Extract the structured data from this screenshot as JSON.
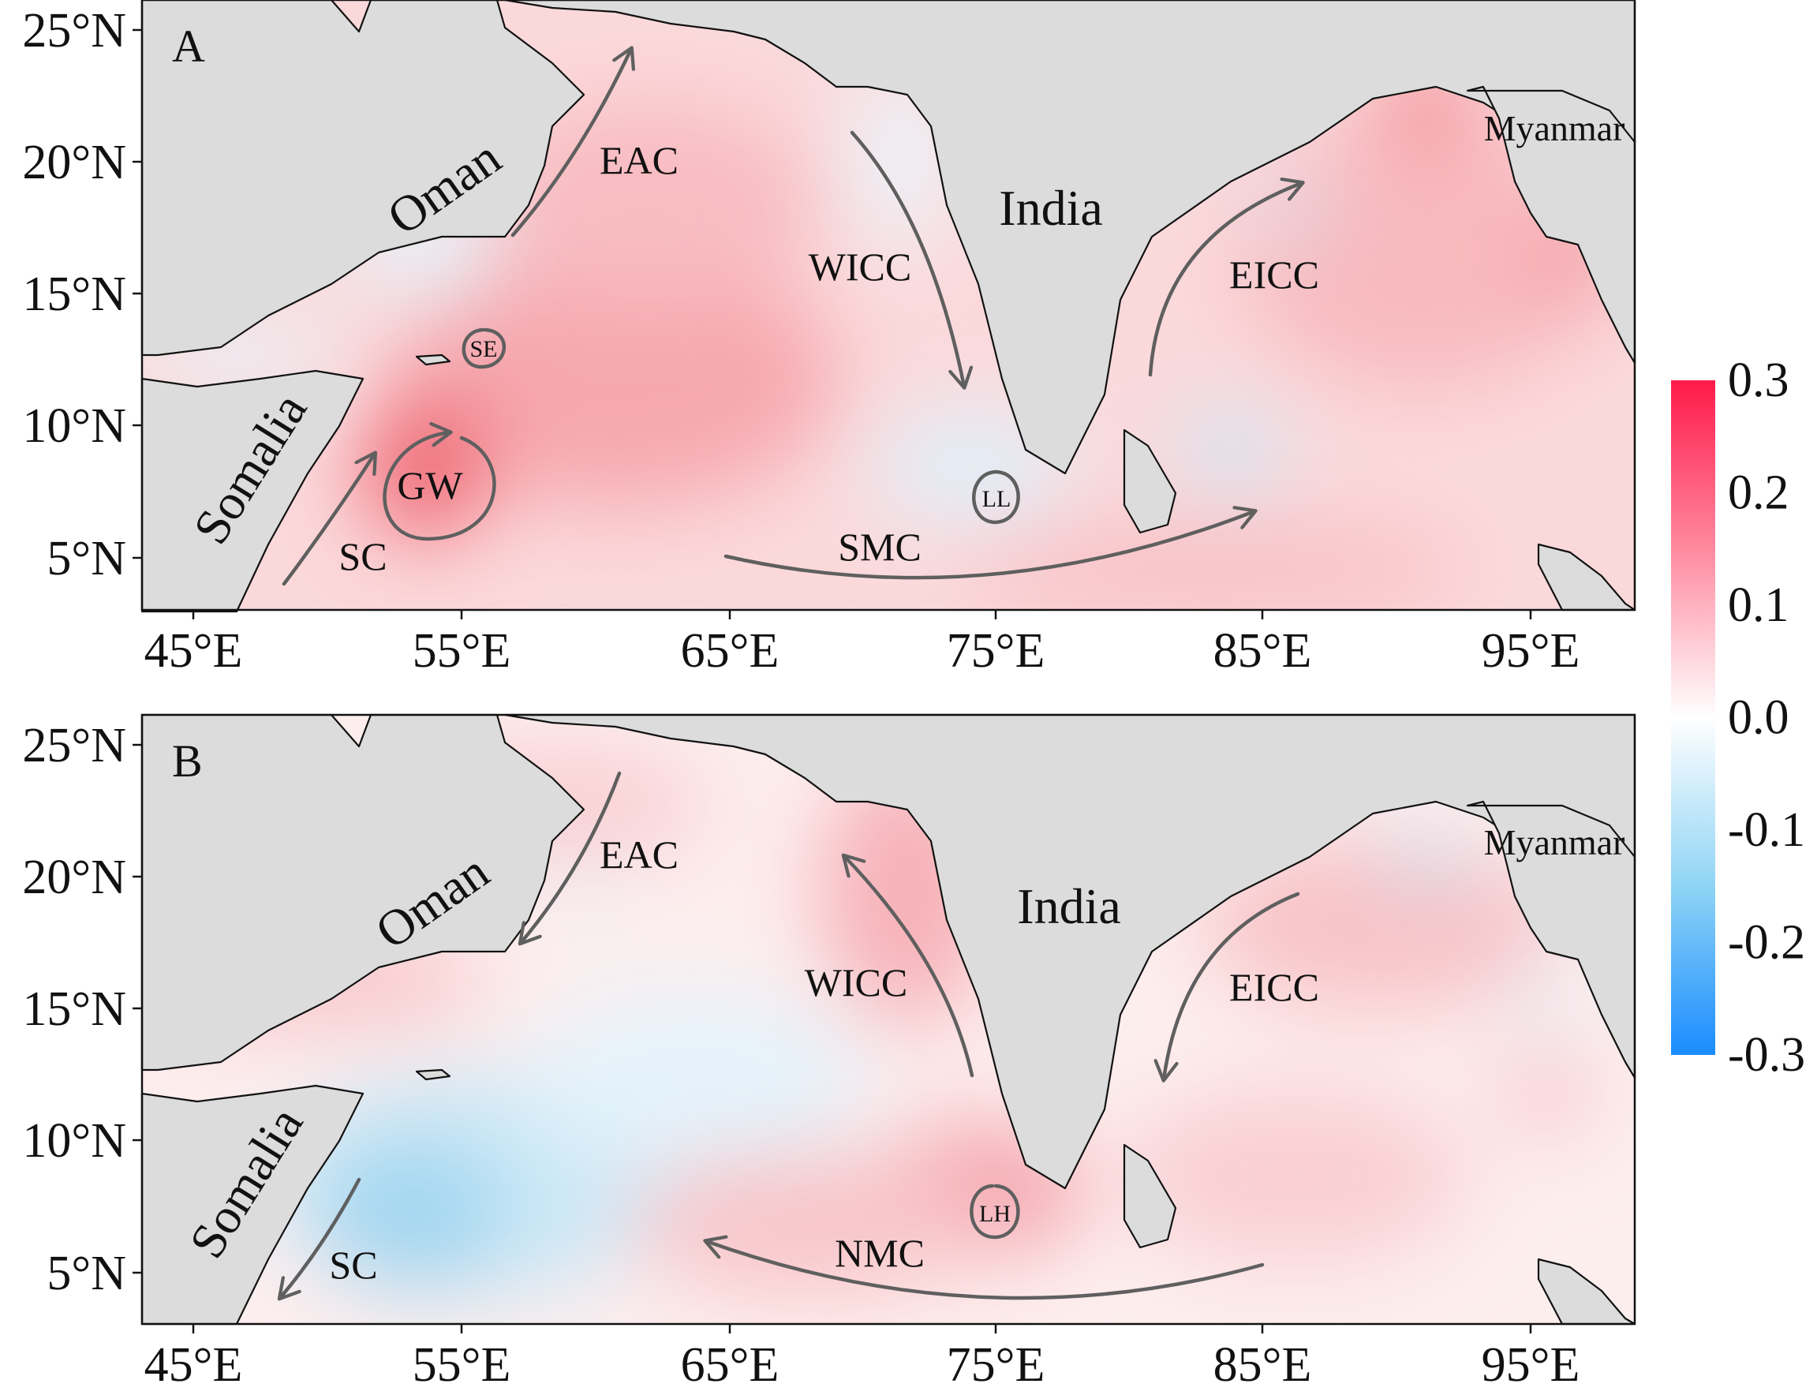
{
  "map": {
    "x_ticks": [
      "45°E",
      "55°E",
      "65°E",
      "75°E",
      "85°E",
      "95°E"
    ],
    "y_ticks": [
      "5°N",
      "10°N",
      "15°N",
      "20°N",
      "25°N"
    ],
    "land_color": "#dcdcdc",
    "panels": [
      {
        "letter": "A",
        "countries": {
          "oman": "Oman",
          "somalia": "Somalia",
          "india": "India",
          "myanmar": "Myanmar"
        },
        "currents": {
          "eac": "EAC",
          "wicc": "WICC",
          "eicc": "EICC",
          "smc": "SMC",
          "sc": "SC",
          "gw": "GW",
          "se": "SE",
          "ll": "LL"
        }
      },
      {
        "letter": "B",
        "countries": {
          "oman": "Oman",
          "somalia": "Somalia",
          "india": "India",
          "myanmar": "Myanmar"
        },
        "currents": {
          "eac": "EAC",
          "wicc": "WICC",
          "eicc": "EICC",
          "nmc": "NMC",
          "sc": "SC",
          "lh": "LH"
        }
      }
    ]
  },
  "colorbar": {
    "ticks": [
      "0.3",
      "0.2",
      "0.1",
      "0.0",
      "-0.1",
      "-0.2",
      "-0.3"
    ],
    "max_color": "#ff1a4a",
    "mid_color": "#ffffff",
    "min_color": "#1a8cff"
  }
}
